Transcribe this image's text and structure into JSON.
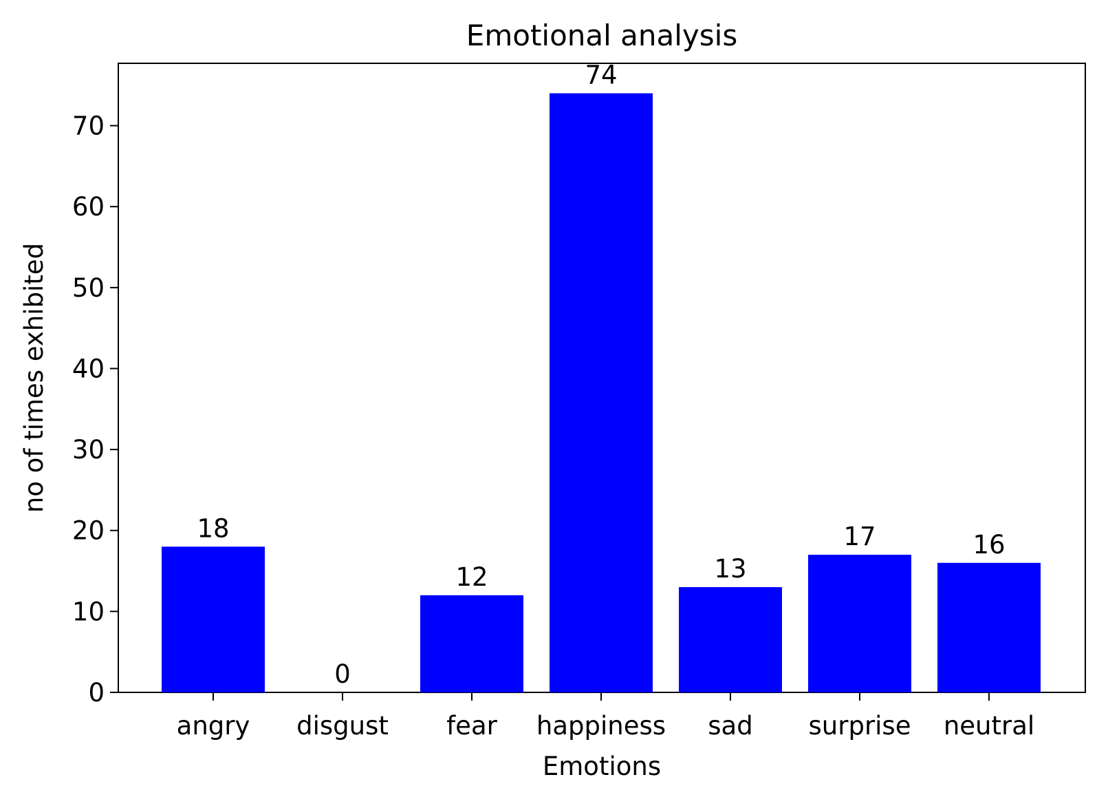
{
  "chart_data": {
    "type": "bar",
    "title": "Emotional analysis",
    "xlabel": "Emotions",
    "ylabel": "no of times exhibited",
    "categories": [
      "angry",
      "disgust",
      "fear",
      "happiness",
      "sad",
      "surprise",
      "neutral"
    ],
    "values": [
      18,
      0,
      12,
      74,
      13,
      17,
      16
    ],
    "data_labels": [
      "18",
      "0",
      "12",
      "74",
      "13",
      "17",
      "16"
    ],
    "yticks": [
      0,
      10,
      20,
      30,
      40,
      50,
      60,
      70
    ],
    "ytick_labels": [
      "0",
      "10",
      "20",
      "30",
      "40",
      "50",
      "60",
      "70"
    ],
    "ylim": [
      0,
      77.7
    ],
    "bar_color": "#0000ff",
    "grid": false,
    "legend": "none"
  }
}
